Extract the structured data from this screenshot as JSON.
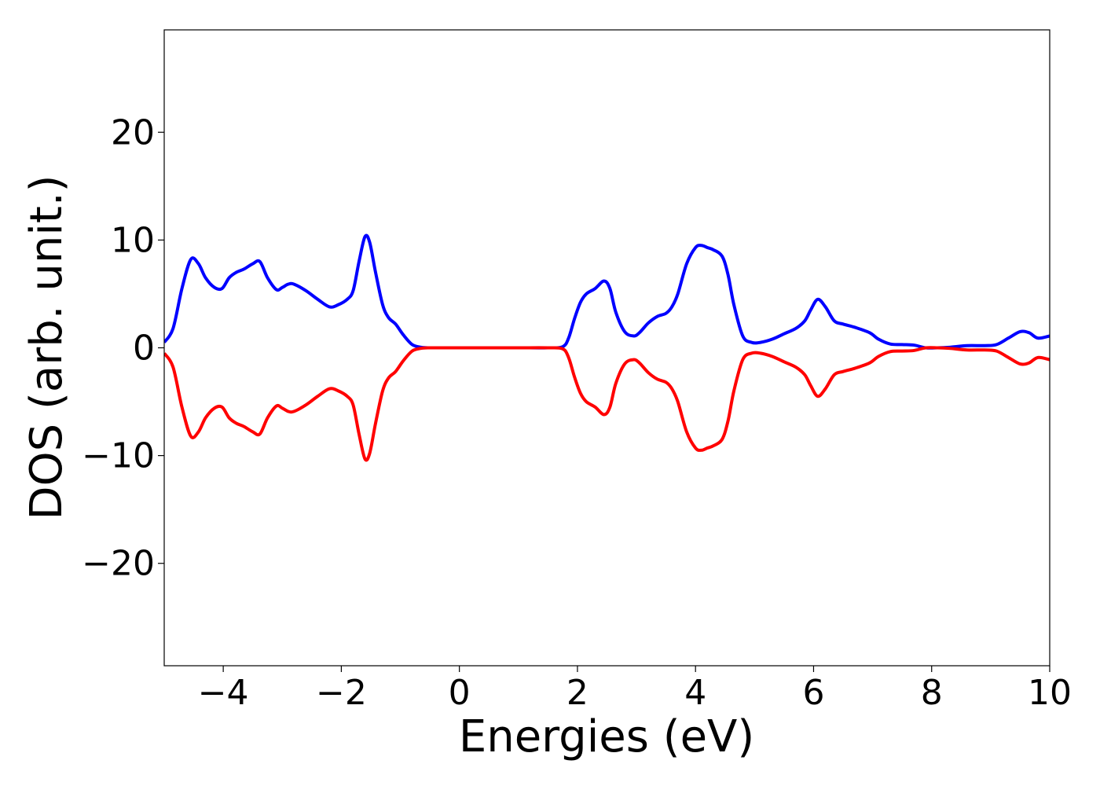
{
  "chart_data": {
    "type": "line",
    "title": "",
    "xlabel": "Energies (eV)",
    "ylabel": "DOS (arb. unit.)",
    "xlim": [
      -5,
      10
    ],
    "ylim": [
      -29.5,
      29.5
    ],
    "xticks": [
      -4,
      -2,
      0,
      2,
      4,
      6,
      8,
      10
    ],
    "yticks": [
      -20,
      -10,
      0,
      10,
      20
    ],
    "xtick_labels": [
      "−4",
      "−2",
      "0",
      "2",
      "4",
      "6",
      "8",
      "10"
    ],
    "ytick_labels": [
      "−20",
      "−10",
      "0",
      "10",
      "20"
    ],
    "grid": false,
    "legend": "none",
    "series": [
      {
        "color": "#0000ff",
        "x": [
          -5.0,
          -4.85,
          -4.7,
          -4.55,
          -4.42,
          -4.3,
          -4.15,
          -4.02,
          -3.9,
          -3.78,
          -3.65,
          -3.5,
          -3.38,
          -3.25,
          -3.1,
          -3.0,
          -2.9,
          -2.8,
          -2.6,
          -2.4,
          -2.2,
          -2.05,
          -1.9,
          -1.8,
          -1.7,
          -1.6,
          -1.52,
          -1.42,
          -1.3,
          -1.2,
          -1.08,
          -0.95,
          -0.8,
          -0.65,
          -0.5,
          -0.3,
          0.0,
          0.5,
          1.0,
          1.5,
          1.75,
          1.85,
          1.95,
          2.05,
          2.15,
          2.3,
          2.45,
          2.55,
          2.65,
          2.8,
          2.95,
          3.05,
          3.2,
          3.35,
          3.5,
          3.6,
          3.7,
          3.85,
          4.0,
          4.1,
          4.2,
          4.3,
          4.45,
          4.55,
          4.65,
          4.8,
          4.95,
          5.1,
          5.3,
          5.5,
          5.7,
          5.85,
          5.95,
          6.07,
          6.2,
          6.35,
          6.5,
          6.7,
          6.95,
          7.1,
          7.3,
          7.5,
          7.7,
          7.9,
          8.1,
          8.3,
          8.6,
          8.9,
          9.1,
          9.3,
          9.5,
          9.65,
          9.8,
          10.0
        ],
        "values": [
          0.5,
          1.8,
          5.5,
          8.2,
          7.8,
          6.5,
          5.6,
          5.5,
          6.5,
          7.0,
          7.3,
          7.8,
          8.0,
          6.5,
          5.4,
          5.6,
          5.9,
          5.9,
          5.3,
          4.5,
          3.8,
          4.0,
          4.5,
          5.3,
          8.0,
          10.3,
          9.8,
          7.0,
          4.0,
          2.8,
          2.2,
          1.2,
          0.3,
          0.05,
          0.0,
          0.0,
          0.0,
          0.0,
          0.0,
          0.0,
          0.1,
          0.9,
          2.7,
          4.2,
          5.0,
          5.5,
          6.2,
          5.5,
          3.3,
          1.5,
          1.1,
          1.4,
          2.3,
          2.9,
          3.2,
          3.8,
          5.0,
          7.8,
          9.3,
          9.5,
          9.3,
          9.1,
          8.5,
          6.8,
          4.0,
          1.1,
          0.5,
          0.5,
          0.8,
          1.3,
          1.8,
          2.5,
          3.5,
          4.5,
          3.8,
          2.5,
          2.2,
          1.9,
          1.4,
          0.8,
          0.35,
          0.3,
          0.25,
          0.0,
          0.0,
          0.05,
          0.2,
          0.2,
          0.3,
          0.9,
          1.5,
          1.4,
          0.9,
          1.1
        ]
      },
      {
        "color": "#ff0000",
        "x": [
          -5.0,
          -4.85,
          -4.7,
          -4.55,
          -4.42,
          -4.3,
          -4.15,
          -4.02,
          -3.9,
          -3.78,
          -3.65,
          -3.5,
          -3.38,
          -3.25,
          -3.1,
          -3.0,
          -2.9,
          -2.8,
          -2.6,
          -2.4,
          -2.2,
          -2.05,
          -1.9,
          -1.8,
          -1.7,
          -1.6,
          -1.52,
          -1.42,
          -1.3,
          -1.2,
          -1.08,
          -0.95,
          -0.8,
          -0.65,
          -0.5,
          -0.3,
          0.0,
          0.5,
          1.0,
          1.5,
          1.75,
          1.85,
          1.95,
          2.05,
          2.15,
          2.3,
          2.45,
          2.55,
          2.65,
          2.8,
          2.95,
          3.05,
          3.2,
          3.35,
          3.5,
          3.6,
          3.7,
          3.85,
          4.0,
          4.1,
          4.2,
          4.3,
          4.45,
          4.55,
          4.65,
          4.8,
          4.95,
          5.1,
          5.3,
          5.5,
          5.7,
          5.85,
          5.95,
          6.07,
          6.2,
          6.35,
          6.5,
          6.7,
          6.95,
          7.1,
          7.3,
          7.5,
          7.7,
          7.9,
          8.1,
          8.3,
          8.6,
          8.9,
          9.1,
          9.3,
          9.5,
          9.65,
          9.8,
          10.0
        ],
        "values": [
          -0.5,
          -1.8,
          -5.5,
          -8.2,
          -7.8,
          -6.5,
          -5.6,
          -5.5,
          -6.5,
          -7.0,
          -7.3,
          -7.8,
          -8.0,
          -6.5,
          -5.4,
          -5.6,
          -5.9,
          -5.9,
          -5.3,
          -4.5,
          -3.8,
          -4.0,
          -4.5,
          -5.3,
          -8.0,
          -10.3,
          -9.8,
          -7.0,
          -4.0,
          -2.8,
          -2.2,
          -1.2,
          -0.3,
          -0.05,
          0.0,
          0.0,
          0.0,
          0.0,
          0.0,
          0.0,
          -0.1,
          -0.9,
          -2.7,
          -4.2,
          -5.0,
          -5.5,
          -6.2,
          -5.5,
          -3.3,
          -1.5,
          -1.1,
          -1.4,
          -2.3,
          -2.9,
          -3.2,
          -3.8,
          -5.0,
          -7.8,
          -9.3,
          -9.5,
          -9.3,
          -9.1,
          -8.5,
          -6.8,
          -4.0,
          -1.1,
          -0.5,
          -0.5,
          -0.8,
          -1.3,
          -1.8,
          -2.5,
          -3.5,
          -4.5,
          -3.8,
          -2.5,
          -2.2,
          -1.9,
          -1.4,
          -0.8,
          -0.35,
          -0.3,
          -0.25,
          0.0,
          0.0,
          -0.05,
          -0.2,
          -0.2,
          -0.3,
          -0.9,
          -1.5,
          -1.4,
          -0.9,
          -1.1
        ]
      }
    ]
  }
}
